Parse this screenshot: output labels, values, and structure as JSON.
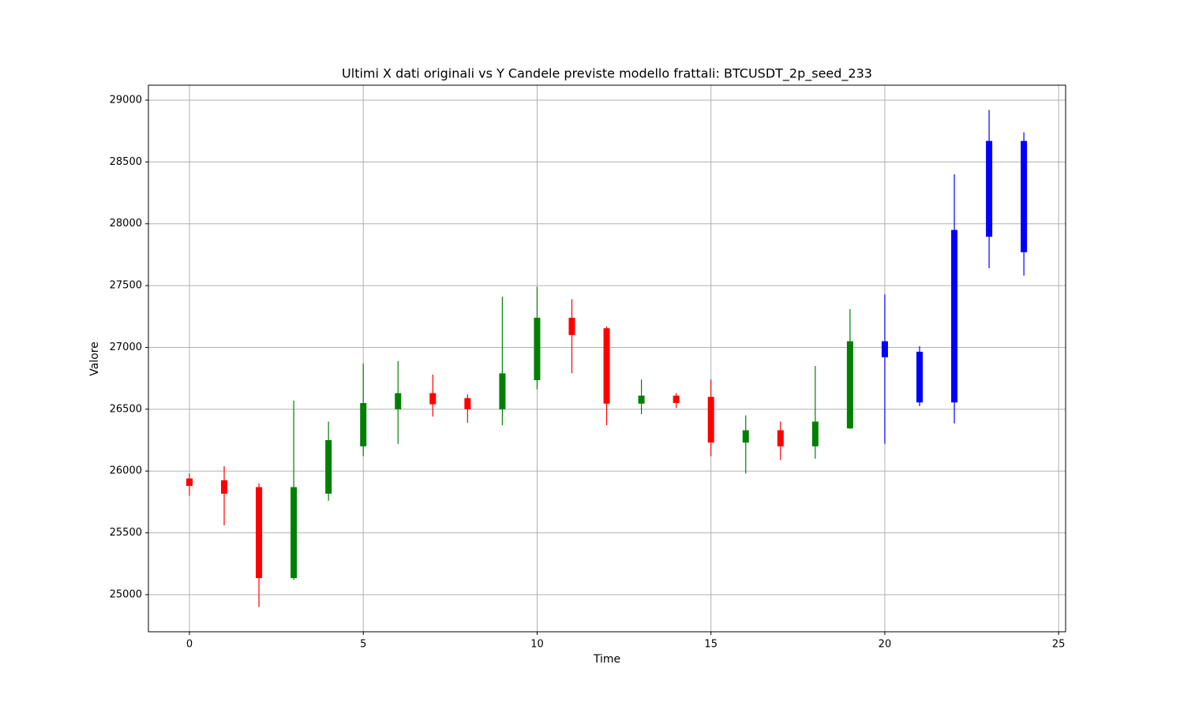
{
  "chart_data": {
    "type": "candlestick",
    "title": "Ultimi X dati originali vs Y Candele previste modello frattali: BTCUSDT_2p_seed_233",
    "xlabel": "Time",
    "ylabel": "Valore",
    "x": [
      0,
      1,
      2,
      3,
      4,
      5,
      6,
      7,
      8,
      9,
      10,
      11,
      12,
      13,
      14,
      15,
      16,
      17,
      18,
      19,
      20,
      21,
      22,
      23,
      24
    ],
    "open": [
      25940,
      25925,
      25870,
      25134,
      25817,
      26200,
      26500,
      26630,
      26590,
      26500,
      26735,
      27240,
      27155,
      26545,
      26610,
      26600,
      26230,
      26330,
      26200,
      26345,
      27050,
      26965,
      26555,
      27895,
      27770
    ],
    "high": [
      25980,
      26040,
      25900,
      26570,
      26400,
      26870,
      26890,
      26780,
      26620,
      27410,
      27490,
      27390,
      27170,
      26740,
      26630,
      26740,
      26450,
      26400,
      26850,
      27310,
      27430,
      27010,
      28400,
      28920,
      28740
    ],
    "low": [
      25800,
      25560,
      24900,
      25120,
      25760,
      26120,
      26220,
      26440,
      26390,
      26370,
      26660,
      26790,
      26370,
      26460,
      26510,
      26120,
      25980,
      26090,
      26100,
      26340,
      26220,
      26525,
      26385,
      27640,
      27580
    ],
    "close": [
      25880,
      25817,
      25134,
      25870,
      26250,
      26550,
      26630,
      26540,
      26500,
      26790,
      27240,
      27100,
      26545,
      26610,
      26550,
      26230,
      26330,
      26200,
      26400,
      27050,
      26920,
      26555,
      27950,
      28670,
      28670
    ],
    "colors": [
      "red",
      "red",
      "red",
      "green",
      "green",
      "green",
      "green",
      "red",
      "red",
      "green",
      "green",
      "red",
      "red",
      "green",
      "red",
      "red",
      "green",
      "red",
      "green",
      "green",
      "blue",
      "blue",
      "blue",
      "blue",
      "blue"
    ],
    "xlim": [
      -1.18,
      25.2
    ],
    "xticks": [
      0,
      5,
      10,
      15,
      20,
      25
    ],
    "ylim": [
      24700,
      29121
    ],
    "yticks": [
      25000,
      25500,
      26000,
      26500,
      27000,
      27500,
      28000,
      28500,
      29000
    ],
    "grid": true
  }
}
